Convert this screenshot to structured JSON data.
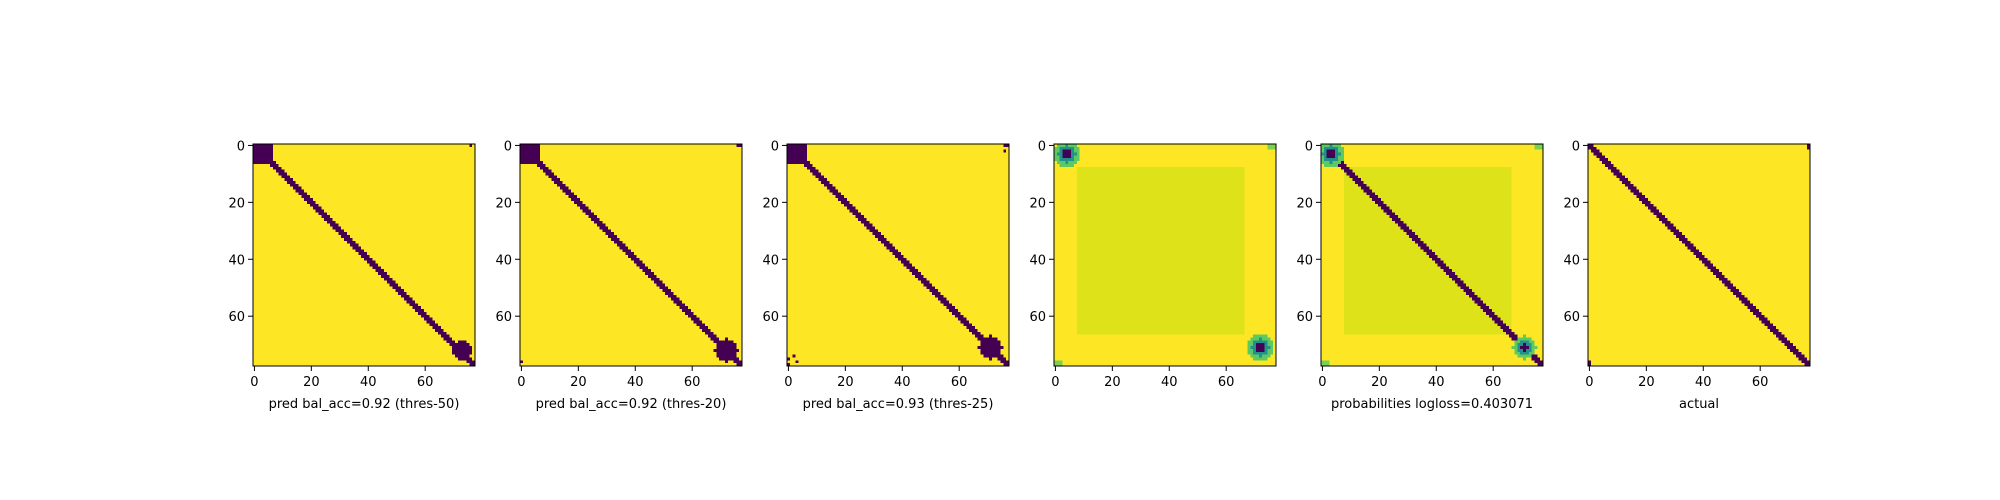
{
  "chart_data": [
    {
      "type": "heatmap",
      "kind": "binary",
      "label": "pred bal_acc=0.92 (thres-50)",
      "size": 78,
      "xticks": [
        0,
        20,
        40,
        60
      ],
      "yticks": [
        0,
        20,
        40,
        60
      ],
      "band_halfwidth": 1.8,
      "corner_blobs": [
        [
          2,
          2,
          4.5
        ],
        [
          72,
          73,
          3.5
        ]
      ],
      "specks": [
        [
          0,
          76
        ]
      ],
      "colors": {
        "low": "#440154",
        "high": "#fde725"
      }
    },
    {
      "type": "heatmap",
      "kind": "binary",
      "label": "pred bal_acc=0.92 (thres-20)",
      "size": 78,
      "xticks": [
        0,
        20,
        40,
        60
      ],
      "yticks": [
        0,
        20,
        40,
        60
      ],
      "band_halfwidth": 1.8,
      "corner_blobs": [
        [
          2,
          2,
          4.5
        ],
        [
          72,
          72,
          4.0
        ]
      ],
      "specks": [
        [
          0,
          76
        ],
        [
          0,
          77
        ],
        [
          76,
          0
        ]
      ],
      "colors": {
        "low": "#440154",
        "high": "#fde725"
      }
    },
    {
      "type": "heatmap",
      "kind": "binary",
      "label": "pred bal_acc=0.93 (thres-25)",
      "size": 78,
      "xticks": [
        0,
        20,
        40,
        60
      ],
      "yticks": [
        0,
        20,
        40,
        60
      ],
      "band_halfwidth": 1.6,
      "corner_blobs": [
        [
          2,
          2,
          4.5
        ],
        [
          71,
          71,
          4.0
        ]
      ],
      "specks": [
        [
          0,
          76
        ],
        [
          0,
          77
        ],
        [
          2,
          76
        ],
        [
          75,
          0
        ],
        [
          77,
          0
        ],
        [
          76,
          3
        ],
        [
          74,
          2
        ]
      ],
      "colors": {
        "low": "#440154",
        "high": "#fde725"
      }
    },
    {
      "type": "heatmap",
      "kind": "probability_square",
      "label": "",
      "size": 78,
      "xticks": [
        0,
        20,
        40,
        60
      ],
      "yticks": [
        0,
        20,
        40,
        60
      ],
      "inner_square": [
        8,
        8,
        66,
        66
      ],
      "corner_blobs": [
        [
          3,
          4,
          4.5
        ],
        [
          71,
          72,
          4.5
        ]
      ],
      "colors": {
        "outer": "#fde725",
        "inner": "#dde318",
        "low": "#440154",
        "mid": "#21918c"
      }
    },
    {
      "type": "heatmap",
      "kind": "probability_diag",
      "label": "probabilities logloss=0.403071",
      "size": 78,
      "xticks": [
        0,
        20,
        40,
        60
      ],
      "yticks": [
        0,
        20,
        40,
        60
      ],
      "inner_square": [
        8,
        8,
        66,
        66
      ],
      "band_halfwidth": 1.8,
      "corner_blobs": [
        [
          3,
          3,
          4.5
        ],
        [
          71,
          71,
          4.0
        ]
      ],
      "colors": {
        "outer": "#fde725",
        "inner": "#dde318",
        "low": "#440154",
        "mid": "#21918c"
      }
    },
    {
      "type": "heatmap",
      "kind": "actual",
      "label": "actual",
      "size": 78,
      "xticks": [
        0,
        20,
        40,
        60
      ],
      "yticks": [
        0,
        20,
        40,
        60
      ],
      "band_halfwidth": 1.2,
      "specks": [
        [
          0,
          77
        ],
        [
          1,
          77
        ],
        [
          77,
          0
        ],
        [
          76,
          0
        ]
      ],
      "colors": {
        "low": "#440154",
        "high": "#fde725"
      }
    }
  ]
}
